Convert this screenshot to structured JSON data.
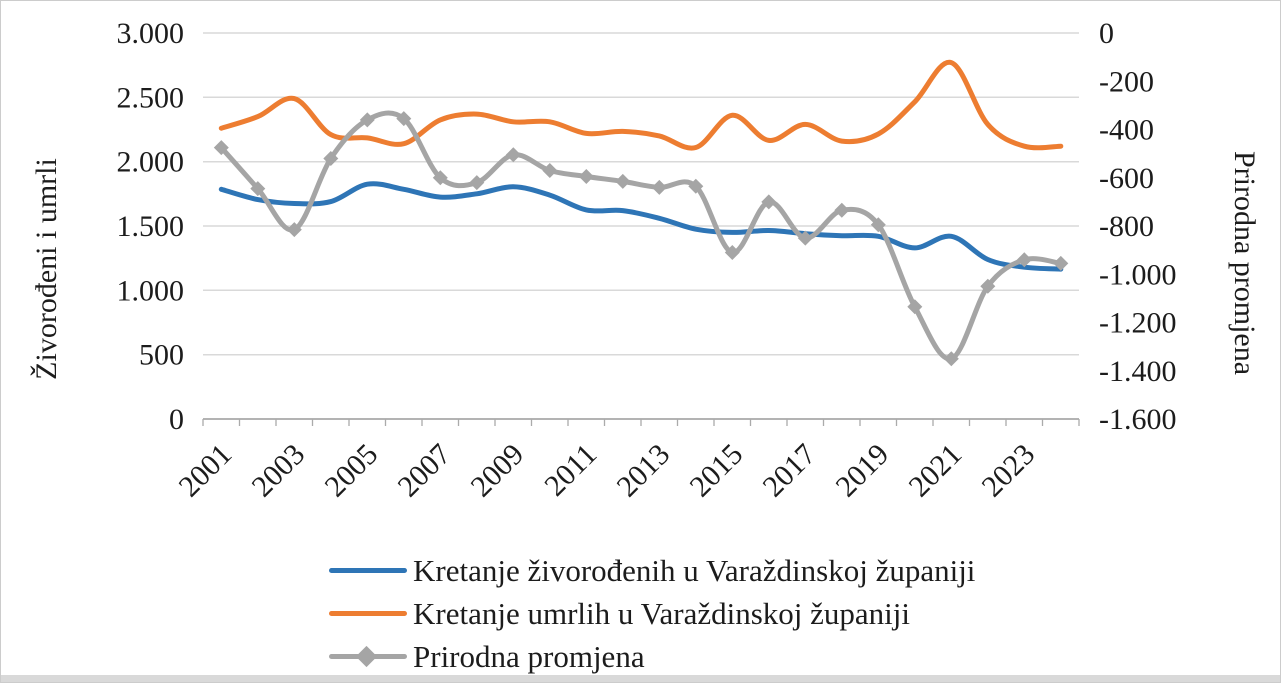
{
  "chart_data": {
    "type": "line",
    "title": "",
    "x_categories": [
      2001,
      2002,
      2003,
      2004,
      2005,
      2006,
      2007,
      2008,
      2009,
      2010,
      2011,
      2012,
      2013,
      2014,
      2015,
      2016,
      2017,
      2018,
      2019,
      2020,
      2021,
      2022,
      2023,
      2024
    ],
    "x_tick_labels": [
      "2001",
      "2003",
      "2005",
      "2007",
      "2009",
      "2011",
      "2013",
      "2015",
      "2017",
      "2019",
      "2021",
      "2023"
    ],
    "series": [
      {
        "name": "Kretanje živorođenih u Varaždinskoj županiji",
        "axis": "left",
        "color": "#2E75B6",
        "marker": "none",
        "values": [
          1785,
          1705,
          1675,
          1690,
          1825,
          1785,
          1725,
          1750,
          1805,
          1740,
          1625,
          1620,
          1560,
          1475,
          1450,
          1465,
          1440,
          1425,
          1420,
          1330,
          1420,
          1240,
          1180,
          1165
        ]
      },
      {
        "name": "Kretanje umrlih u Varaždinskoj županiji",
        "axis": "left",
        "color": "#ED7D31",
        "marker": "none",
        "values": [
          2260,
          2350,
          2490,
          2210,
          2185,
          2140,
          2325,
          2370,
          2310,
          2310,
          2220,
          2235,
          2200,
          2110,
          2360,
          2165,
          2290,
          2160,
          2215,
          2465,
          2770,
          2290,
          2120,
          2120
        ]
      },
      {
        "name": "Prirodna promjena",
        "axis": "right",
        "color": "#A5A5A5",
        "marker": "diamond",
        "values": [
          -475,
          -645,
          -815,
          -520,
          -360,
          -355,
          -600,
          -620,
          -505,
          -570,
          -595,
          -615,
          -640,
          -635,
          -910,
          -700,
          -850,
          -735,
          -795,
          -1135,
          -1350,
          -1050,
          -940,
          -955
        ]
      }
    ],
    "left_axis": {
      "title": "Živorođeni i umrli",
      "min": 0,
      "max": 3000,
      "step": 500,
      "tick_labels": [
        "3.000",
        "2.500",
        "2.000",
        "1.500",
        "1.000",
        "500",
        "0"
      ]
    },
    "right_axis": {
      "title": "Prirodna promjena",
      "min": -1600,
      "max": 0,
      "step": 200,
      "tick_labels": [
        "0",
        "-200",
        "-400",
        "-600",
        "-800",
        "-1.000",
        "-1.200",
        "-1.400",
        "-1.600"
      ]
    },
    "grid": true,
    "grid_color": "#D9D9D9",
    "axis_line_color": "#ABABAB",
    "text_color": "#1c1c1c",
    "legend_position": "bottom-left",
    "smoothed_lines": true
  }
}
